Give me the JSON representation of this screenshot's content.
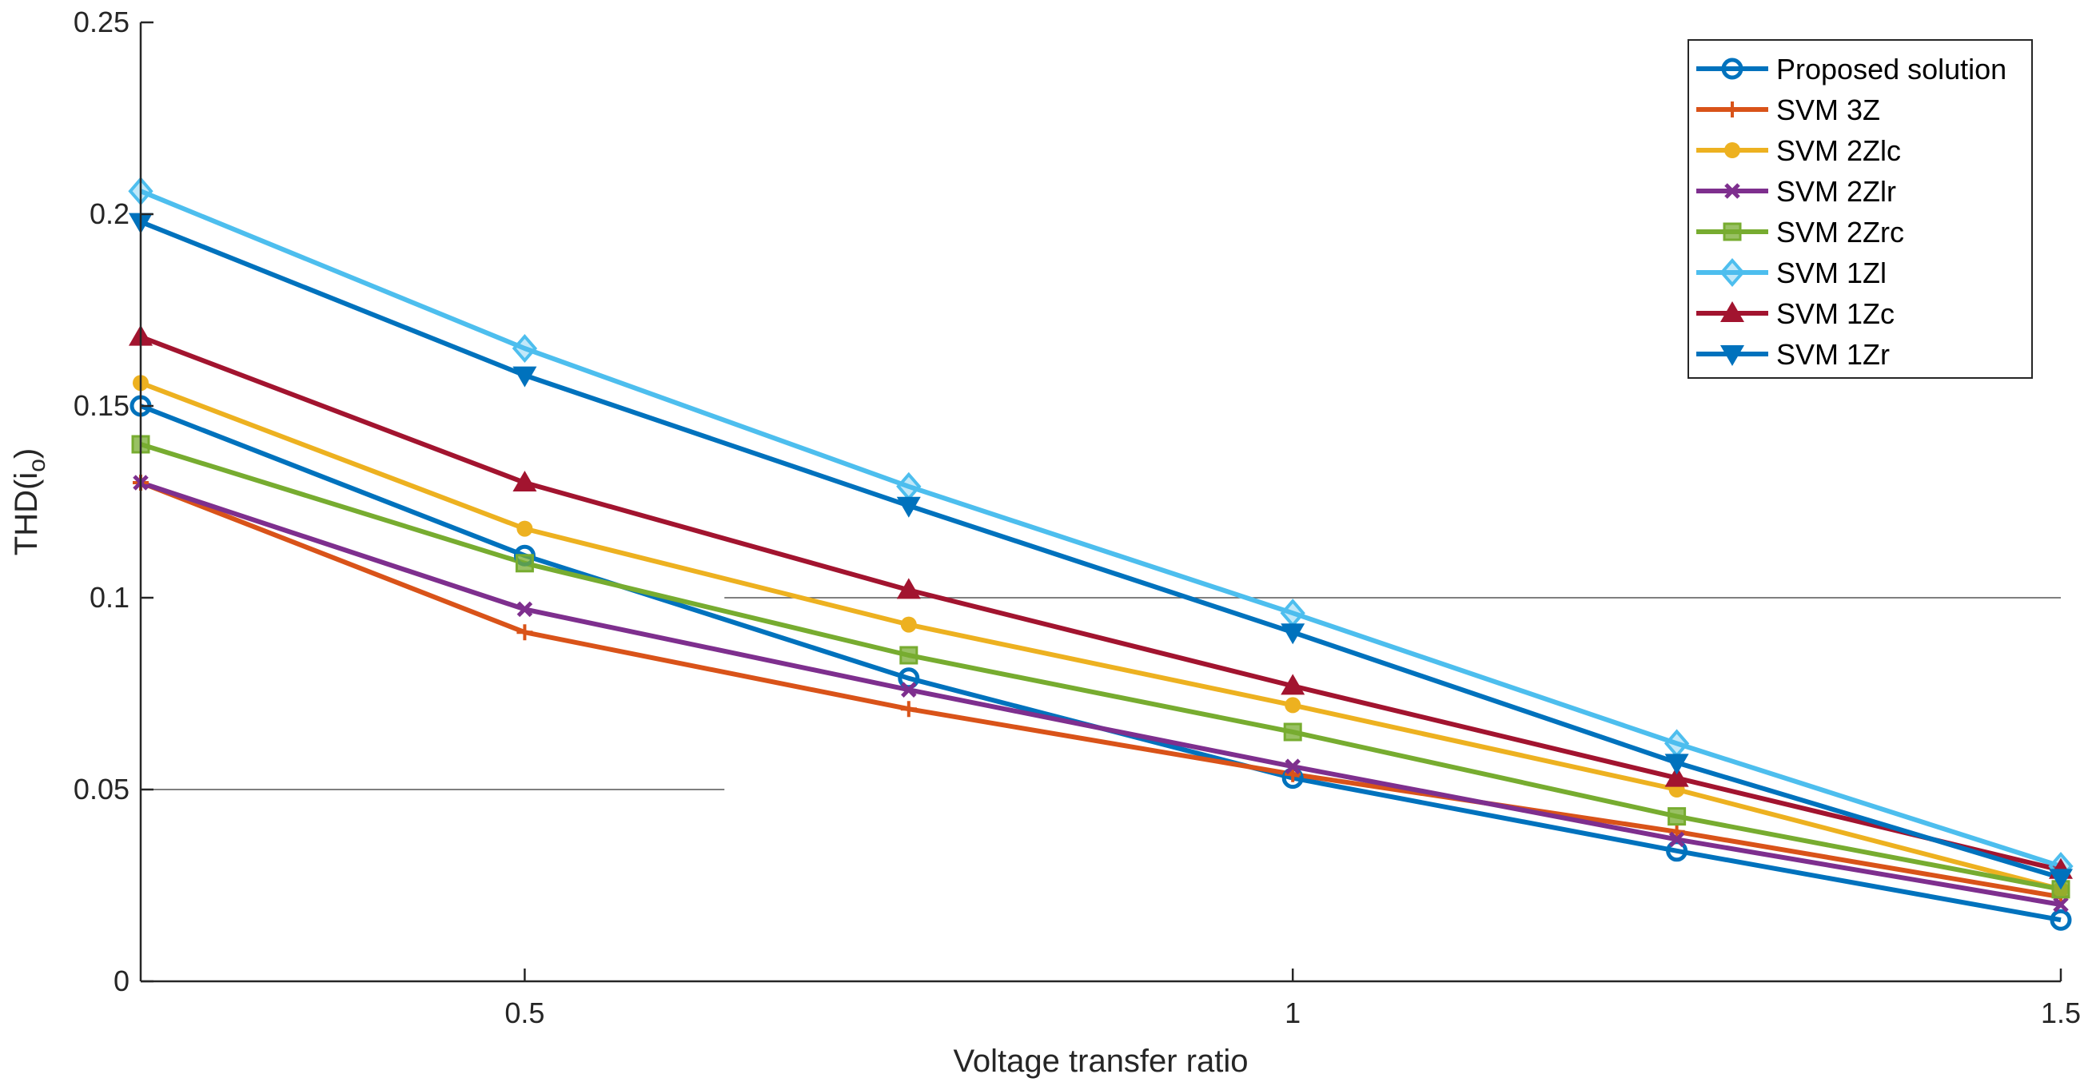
{
  "chart_data": {
    "type": "line",
    "title": "",
    "xlabel": "Voltage transfer ratio",
    "ylabel_main": "THD(i",
    "ylabel_sub": "o",
    "ylabel_close": ")",
    "xlim": [
      0.25,
      1.5
    ],
    "ylim": [
      0,
      0.25
    ],
    "xticks": [
      0.5,
      1,
      1.5
    ],
    "xtick_labels": [
      "0.5",
      "1",
      "1.5"
    ],
    "yticks": [
      0,
      0.05,
      0.1,
      0.15,
      0.2,
      0.25
    ],
    "ytick_labels": [
      "0",
      "0.05",
      "0.1",
      "0.15",
      "0.2",
      "0.25"
    ],
    "grid": false,
    "legend_position": "top-right",
    "x": [
      0.25,
      0.5,
      0.75,
      1.0,
      1.25,
      1.5
    ],
    "reference_lines": [
      {
        "y": 0.05,
        "x_start": 0.25,
        "x_end": 0.63
      },
      {
        "y": 0.1,
        "x_start": 0.63,
        "x_end": 1.5
      }
    ],
    "series": [
      {
        "name": "Proposed solution",
        "color": "#0072BD",
        "marker": "circle",
        "values": [
          0.15,
          0.111,
          0.079,
          0.053,
          0.034,
          0.016
        ]
      },
      {
        "name": "SVM 3Z",
        "color": "#D95319",
        "marker": "plus",
        "values": [
          0.13,
          0.091,
          0.071,
          0.054,
          0.039,
          0.022
        ]
      },
      {
        "name": "SVM 2Zlc",
        "color": "#EDB120",
        "marker": "dot",
        "values": [
          0.156,
          0.118,
          0.093,
          0.072,
          0.05,
          0.024
        ]
      },
      {
        "name": "SVM 2Zlr",
        "color": "#7E2F8E",
        "marker": "x",
        "values": [
          0.13,
          0.097,
          0.076,
          0.056,
          0.037,
          0.02
        ]
      },
      {
        "name": "SVM 2Zrc",
        "color": "#77AC30",
        "marker": "square",
        "values": [
          0.14,
          0.109,
          0.085,
          0.065,
          0.043,
          0.024
        ]
      },
      {
        "name": "SVM 1Zl",
        "color": "#4DBEEE",
        "marker": "diamond",
        "values": [
          0.206,
          0.165,
          0.129,
          0.096,
          0.062,
          0.03
        ]
      },
      {
        "name": "SVM 1Zc",
        "color": "#A2142F",
        "marker": "triangle-up",
        "values": [
          0.168,
          0.13,
          0.102,
          0.077,
          0.053,
          0.029
        ]
      },
      {
        "name": "SVM 1Zr",
        "color": "#0072BD",
        "marker": "triangle-down",
        "values": [
          0.198,
          0.158,
          0.124,
          0.091,
          0.057,
          0.027
        ]
      }
    ]
  }
}
